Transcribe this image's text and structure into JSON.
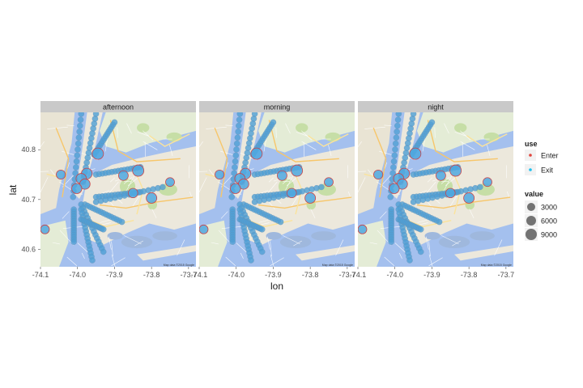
{
  "chart_data": {
    "type": "scatter",
    "basemap": "street-map",
    "panels": [
      "afternoon",
      "morning",
      "night"
    ],
    "xlabel": "lon",
    "ylabel": "lat",
    "xlim": [
      -74.1,
      -73.68
    ],
    "ylim": [
      40.565,
      40.875
    ],
    "x_ticks": [
      "-74.1",
      "-74.0",
      "-73.9",
      "-73.8",
      "-73.7"
    ],
    "x_tick_values": [
      -74.1,
      -74.0,
      -73.9,
      -73.8,
      -73.7
    ],
    "y_ticks": [
      "40.6",
      "40.7",
      "40.8"
    ],
    "y_tick_values": [
      40.6,
      40.7,
      40.8
    ],
    "map_credit": "Map data ©2015 Google",
    "legend": {
      "color_title": "use",
      "color_items": [
        {
          "label": "Enter",
          "color": "#e0463e"
        },
        {
          "label": "Exit",
          "color": "#1ec0ee"
        }
      ],
      "size_title": "value",
      "size_items": [
        {
          "label": "3000",
          "value": 3000
        },
        {
          "label": "6000",
          "value": 6000
        },
        {
          "label": "9000",
          "value": 9000
        }
      ]
    },
    "station_lines": [
      {
        "lon": [
          -74.012,
          -73.99
        ],
        "lat": [
          40.705,
          40.872
        ]
      },
      {
        "lon": [
          -73.985,
          -73.95
        ],
        "lat": [
          40.735,
          40.872
        ]
      },
      {
        "lon": [
          -73.955,
          -73.9
        ],
        "lat": [
          40.79,
          40.855
        ]
      },
      {
        "lon": [
          -73.95,
          -73.83
        ],
        "lat": [
          40.75,
          40.765
        ]
      },
      {
        "lon": [
          -73.95,
          -73.83
        ],
        "lat": [
          40.705,
          40.715
        ]
      },
      {
        "lon": [
          -73.95,
          -73.77
        ],
        "lat": [
          40.695,
          40.725
        ]
      },
      {
        "lon": [
          -73.98,
          -73.88
        ],
        "lat": [
          40.69,
          40.655
        ]
      },
      {
        "lon": [
          -73.99,
          -73.93
        ],
        "lat": [
          40.69,
          40.595
        ]
      },
      {
        "lon": [
          -73.99,
          -73.96
        ],
        "lat": [
          40.68,
          40.578
        ]
      },
      {
        "lon": [
          -74.01,
          -74.01
        ],
        "lat": [
          40.68,
          40.615
        ]
      },
      {
        "lon": [
          -73.99,
          -73.93
        ],
        "lat": [
          40.66,
          40.64
        ]
      }
    ],
    "big_points": [
      {
        "lon": -73.945,
        "lat": 40.792,
        "value": 9000
      },
      {
        "lon": -73.836,
        "lat": 40.758,
        "value": 9000
      },
      {
        "lon": -73.975,
        "lat": 40.752,
        "value": 7500
      },
      {
        "lon": -73.99,
        "lat": 40.742,
        "value": 6500
      },
      {
        "lon": -73.98,
        "lat": 40.731,
        "value": 6500
      },
      {
        "lon": -74.002,
        "lat": 40.722,
        "value": 6000
      },
      {
        "lon": -73.8,
        "lat": 40.703,
        "value": 7000
      },
      {
        "lon": -73.876,
        "lat": 40.748,
        "value": 5000
      },
      {
        "lon": -73.85,
        "lat": 40.713,
        "value": 4500
      },
      {
        "lon": -74.045,
        "lat": 40.75,
        "value": 4000
      },
      {
        "lon": -74.088,
        "lat": 40.64,
        "value": 3500
      },
      {
        "lon": -73.75,
        "lat": 40.735,
        "value": 3500
      }
    ]
  }
}
